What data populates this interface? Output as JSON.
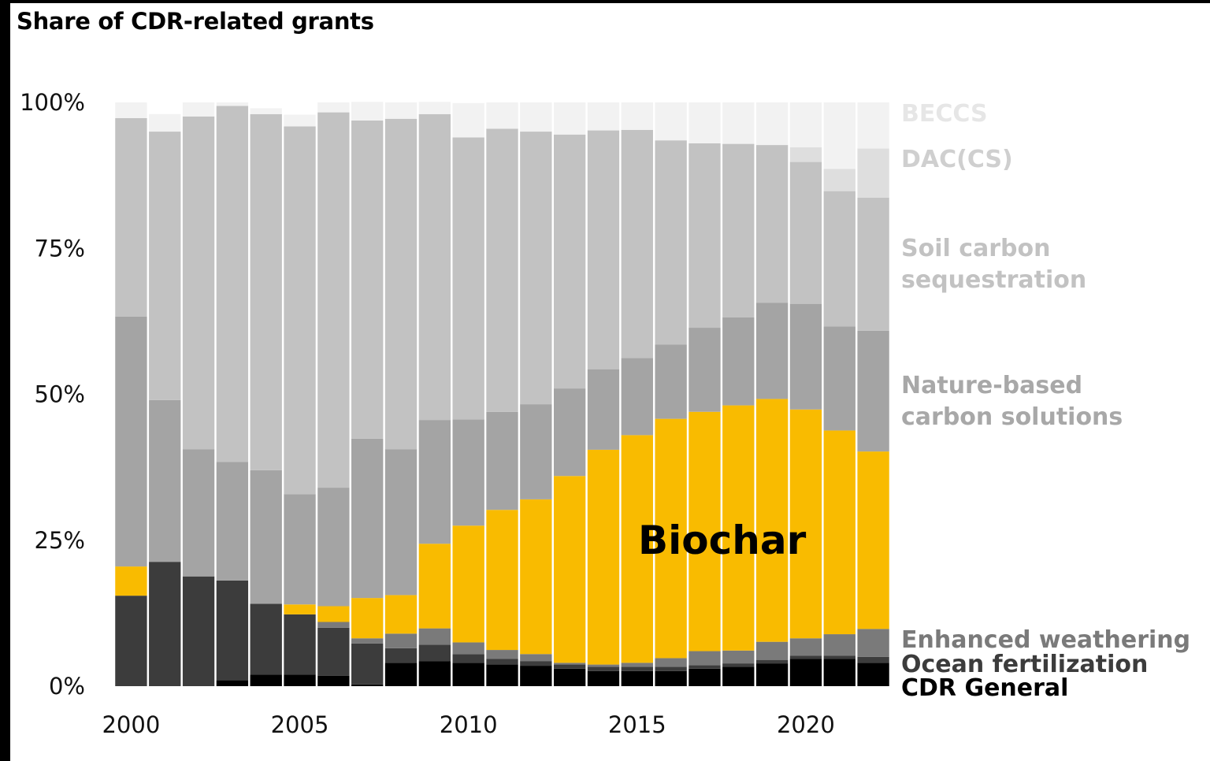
{
  "chart_data": {
    "type": "bar",
    "stacked": true,
    "normalized": true,
    "title": "Share of CDR-related grants",
    "xlabel": "",
    "ylabel": "",
    "ylim": [
      0,
      100
    ],
    "yticks": [
      "0%",
      "25%",
      "50%",
      "75%",
      "100%"
    ],
    "xticks": [
      "2000",
      "2005",
      "2010",
      "2015",
      "2020"
    ],
    "categories": [
      2000,
      2001,
      2002,
      2003,
      2004,
      2005,
      2006,
      2007,
      2008,
      2009,
      2010,
      2011,
      2012,
      2013,
      2014,
      2015,
      2016,
      2017,
      2018,
      2019,
      2020,
      2021,
      2022
    ],
    "grid": false,
    "legend": "direct labels right",
    "series": [
      {
        "name": "CDR General",
        "color": "#000000",
        "values": [
          0,
          0,
          0,
          1,
          2,
          2,
          1.8,
          0.3,
          4,
          4.3,
          4,
          3.7,
          3.5,
          3,
          2.6,
          2.6,
          2.6,
          3,
          3.3,
          3.9,
          4.7,
          4.7,
          4
        ]
      },
      {
        "name": "Ocean fertilization",
        "color": "#3c3c3c",
        "values": [
          15.5,
          21.3,
          18.8,
          17.1,
          12.1,
          10.3,
          8.2,
          7,
          2.5,
          2.8,
          1.5,
          1,
          0.8,
          0.7,
          0.7,
          0.7,
          0.7,
          0.6,
          0.6,
          0.6,
          0.5,
          0.5,
          1
        ]
      },
      {
        "name": "Enhanced weathering",
        "color": "#7a7a7a",
        "values": [
          0,
          0,
          0,
          0,
          0,
          0,
          1,
          0.9,
          2.5,
          2.8,
          2,
          1.5,
          1.2,
          0.3,
          0.4,
          0.7,
          1.5,
          2.4,
          2.2,
          3.1,
          3,
          3.7,
          4.8
        ]
      },
      {
        "name": "Biochar",
        "color": "#f9bb00",
        "values": [
          5,
          0,
          0,
          0,
          0,
          1.7,
          2.7,
          6.9,
          6.6,
          14.5,
          20,
          24,
          26.5,
          32,
          36.8,
          39,
          41,
          41,
          42,
          41.6,
          39.2,
          34.9,
          30.4
        ]
      },
      {
        "name": "Nature-based carbon solutions",
        "color": "#a4a4a4",
        "values": [
          42.8,
          27.7,
          21.8,
          20.3,
          22.9,
          18.9,
          20.3,
          27.3,
          25,
          21.2,
          18.2,
          16.8,
          16.3,
          15,
          13.8,
          13.2,
          12.7,
          14.4,
          15.1,
          16.5,
          18.1,
          17.8,
          20.7
        ]
      },
      {
        "name": "Soil carbon sequestration",
        "color": "#c2c2c2",
        "values": [
          34,
          46,
          57,
          61,
          61,
          63,
          64.3,
          54.5,
          56.6,
          52.4,
          48.3,
          48.5,
          46.7,
          43.5,
          40.9,
          39.1,
          35,
          31.6,
          29.7,
          27,
          24.3,
          23.2,
          22.8
        ]
      },
      {
        "name": "DAC(CS)",
        "color": "#dedede",
        "values": [
          0,
          0,
          0,
          0,
          0,
          0,
          0,
          0,
          0,
          0,
          0,
          0,
          0,
          0,
          0,
          0,
          0,
          0,
          0,
          0,
          2.5,
          3.8,
          8.4
        ]
      },
      {
        "name": "BECCS",
        "color": "#f2f2f2",
        "values": [
          2.7,
          3,
          2.4,
          0.6,
          1,
          2,
          1.7,
          3.2,
          2.8,
          2.1,
          5.9,
          4.5,
          5,
          5.5,
          4.8,
          4.7,
          6.5,
          7,
          7.1,
          7.3,
          7.7,
          11.4,
          7.9
        ]
      }
    ]
  }
}
